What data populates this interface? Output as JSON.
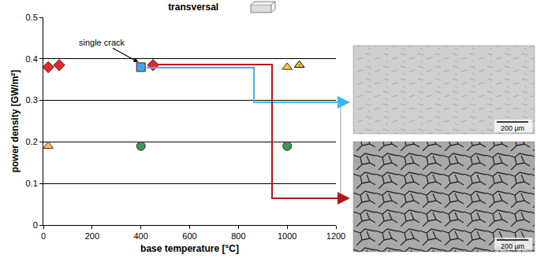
{
  "chart_data": {
    "type": "scatter",
    "title": "transversal",
    "x_label": "base temperature [°C]",
    "y_label": "power density [GW/m²]",
    "xlim": [
      0,
      1200
    ],
    "xticks": [
      0,
      200,
      400,
      600,
      800,
      1000,
      1200
    ],
    "ylim": [
      0,
      0.5
    ],
    "yticks": [
      0,
      0.1,
      0.2,
      0.3,
      0.4,
      0.5
    ],
    "grid": "y",
    "annotations": [
      "single crack"
    ],
    "series": [
      {
        "color": "#e3262b",
        "marker": "diamond",
        "x": [
          20,
          65,
          450
        ],
        "values": [
          0.38,
          0.385,
          0.385
        ]
      },
      {
        "color": "#f7c843",
        "marker": "triangle-up",
        "x": [
          20,
          1000
        ],
        "values": [
          0.19,
          0.38
        ]
      },
      {
        "color": "#f7c843",
        "marker": "triangle-up-dot",
        "x": [
          1050
        ],
        "values": [
          0.385
        ]
      },
      {
        "color": "#3aa8f0",
        "marker": "square",
        "x": [
          400
        ],
        "values": [
          0.38
        ]
      },
      {
        "color": "#2f9e57",
        "marker": "circle",
        "x": [
          400,
          1000
        ],
        "values": [
          0.19,
          0.19
        ]
      }
    ]
  },
  "micrographs": [
    {
      "scale_bar": "200 µm"
    },
    {
      "scale_bar": "200 µm"
    }
  ]
}
